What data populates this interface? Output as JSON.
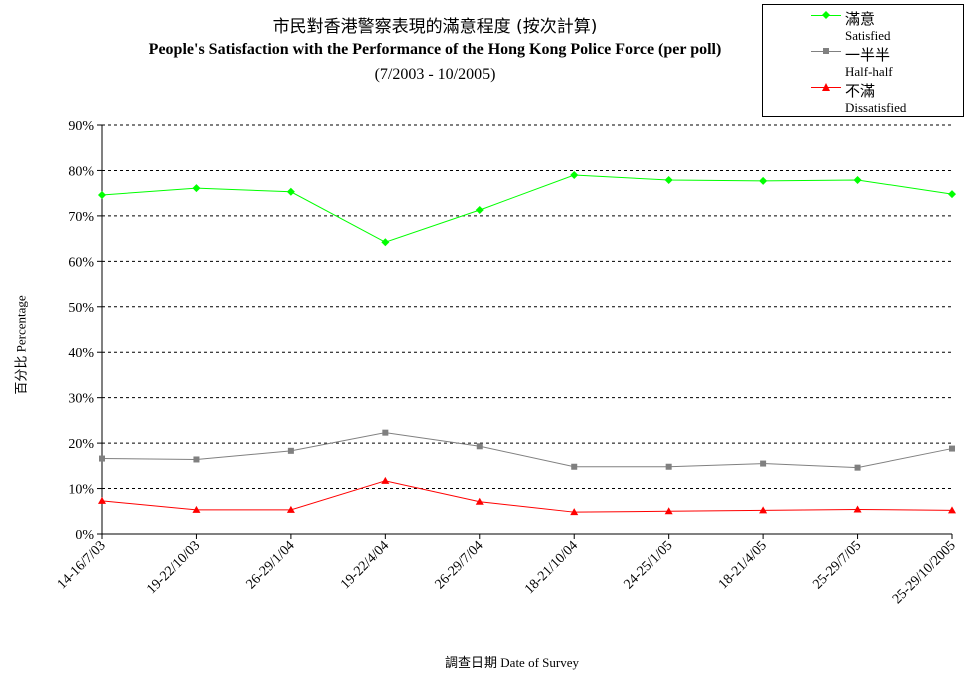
{
  "chart_data": {
    "type": "line",
    "title_zh": "市民對香港警察表現的滿意程度 (按次計算)",
    "title_en": "People's Satisfaction with the Performance of the Hong Kong Police Force (per poll)",
    "subtitle": "(7/2003 - 10/2005)",
    "ylabel_zh": "百分比",
    "ylabel_en": "Percentage",
    "xlabel_zh": "調查日期",
    "xlabel_en": "Date of Survey",
    "categories": [
      "14-16/7/03",
      "19-22/10/03",
      "26-29/1/04",
      "19-22/4/04",
      "26-29/7/04",
      "18-21/10/04",
      "24-25/1/05",
      "18-21/4/05",
      "25-29/7/05",
      "25-29/10/2005"
    ],
    "ylim": [
      0,
      90
    ],
    "yticks": [
      "0%",
      "10%",
      "20%",
      "30%",
      "40%",
      "50%",
      "60%",
      "70%",
      "80%",
      "90%"
    ],
    "grid": true,
    "legend_position": "top-right",
    "series": [
      {
        "name": "Satisfied",
        "name_zh": "滿意",
        "color": "#00ff00",
        "marker": "diamond",
        "values": [
          74.6,
          76.1,
          75.3,
          64.2,
          71.3,
          79.0,
          77.9,
          77.7,
          77.9,
          74.8
        ]
      },
      {
        "name": "Half-half",
        "name_zh": "一半半",
        "color": "#808080",
        "marker": "square",
        "values": [
          16.6,
          16.4,
          18.3,
          22.3,
          19.3,
          14.8,
          14.8,
          15.5,
          14.6,
          18.8
        ]
      },
      {
        "name": "Dissatisfied",
        "name_zh": "不滿",
        "color": "#ff0000",
        "marker": "triangle",
        "values": [
          7.3,
          5.3,
          5.3,
          11.7,
          7.1,
          4.8,
          5.0,
          5.2,
          5.4,
          5.2
        ]
      }
    ]
  }
}
